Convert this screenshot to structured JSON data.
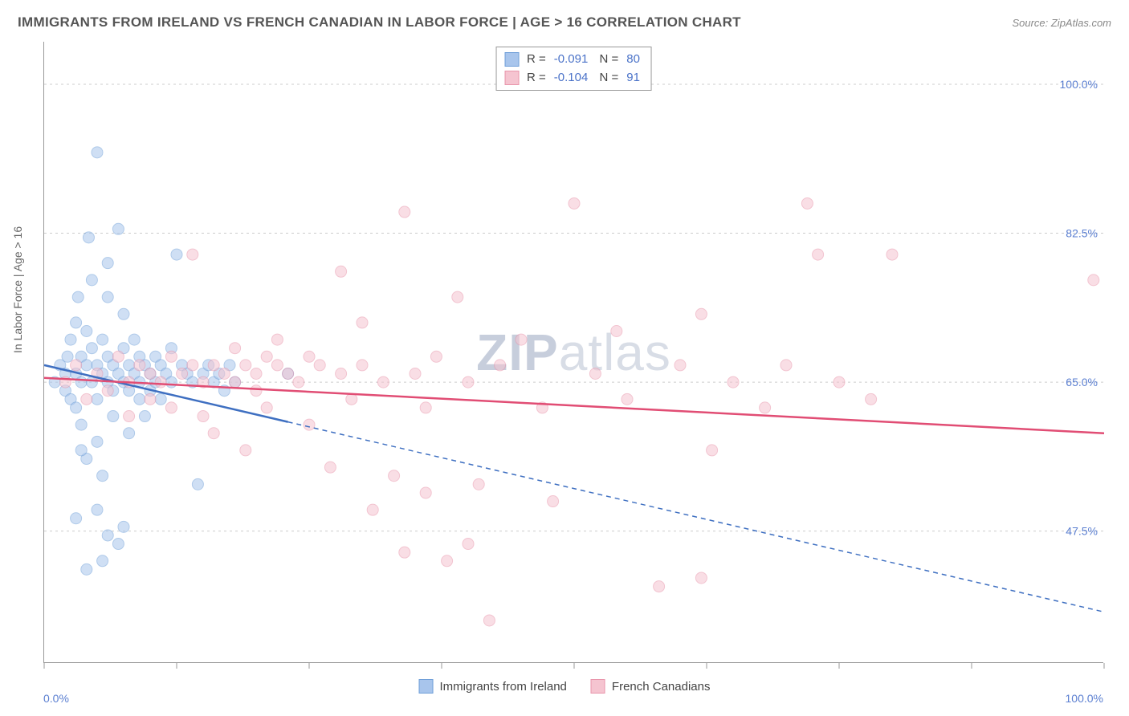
{
  "title": "IMMIGRANTS FROM IRELAND VS FRENCH CANADIAN IN LABOR FORCE | AGE > 16 CORRELATION CHART",
  "source_label": "Source: ZipAtlas.com",
  "y_axis_title": "In Labor Force | Age > 16",
  "watermark": {
    "bold": "ZIP",
    "light": "atlas"
  },
  "chart": {
    "type": "scatter",
    "xlim": [
      0,
      100
    ],
    "ylim": [
      32,
      105
    ],
    "x_ticks": [
      0,
      12.5,
      25,
      37.5,
      50,
      62.5,
      75,
      87.5,
      100
    ],
    "x_tick_labels": {
      "0": "0.0%",
      "100": "100.0%"
    },
    "y_gridlines": [
      47.5,
      65.0,
      82.5,
      100.0
    ],
    "y_tick_labels": [
      "47.5%",
      "65.0%",
      "82.5%",
      "100.0%"
    ],
    "background_color": "#ffffff",
    "grid_color": "#cccccc",
    "axis_color": "#999999",
    "tick_label_color": "#5b7fd1",
    "marker_radius": 7,
    "marker_opacity": 0.55,
    "line_width": 2.5
  },
  "series": [
    {
      "id": "ireland",
      "label": "Immigrants from Ireland",
      "color_fill": "#a8c5ec",
      "color_stroke": "#6f9fd8",
      "line_color": "#3e6fc1",
      "line_dash": "solid_then_dash",
      "R": "-0.091",
      "N": "80",
      "trend": {
        "x1": 0,
        "y1": 67,
        "x2": 100,
        "y2": 38
      },
      "solid_extent_x": 23,
      "points": [
        [
          1,
          65
        ],
        [
          1.5,
          67
        ],
        [
          2,
          64
        ],
        [
          2,
          66
        ],
        [
          2.2,
          68
        ],
        [
          2.5,
          63
        ],
        [
          2.5,
          70
        ],
        [
          3,
          66
        ],
        [
          3,
          62
        ],
        [
          3,
          72
        ],
        [
          3.2,
          75
        ],
        [
          3.5,
          65
        ],
        [
          3.5,
          68
        ],
        [
          3.5,
          60
        ],
        [
          4,
          67
        ],
        [
          4,
          71
        ],
        [
          4,
          56
        ],
        [
          4.2,
          82
        ],
        [
          4.5,
          65
        ],
        [
          4.5,
          69
        ],
        [
          5,
          63
        ],
        [
          5,
          67
        ],
        [
          5,
          58
        ],
        [
          5,
          92
        ],
        [
          5.5,
          66
        ],
        [
          5.5,
          70
        ],
        [
          5.5,
          44
        ],
        [
          6,
          65
        ],
        [
          6,
          68
        ],
        [
          6,
          79
        ],
        [
          6.5,
          64
        ],
        [
          6.5,
          67
        ],
        [
          6.5,
          61
        ],
        [
          7,
          66
        ],
        [
          7,
          83
        ],
        [
          7,
          46
        ],
        [
          7.5,
          65
        ],
        [
          7.5,
          69
        ],
        [
          7.5,
          73
        ],
        [
          8,
          67
        ],
        [
          8,
          64
        ],
        [
          8,
          59
        ],
        [
          8.5,
          66
        ],
        [
          8.5,
          70
        ],
        [
          9,
          65
        ],
        [
          9,
          63
        ],
        [
          9,
          68
        ],
        [
          9.5,
          67
        ],
        [
          9.5,
          61
        ],
        [
          10,
          66
        ],
        [
          10,
          64
        ],
        [
          10.5,
          65
        ],
        [
          10.5,
          68
        ],
        [
          11,
          67
        ],
        [
          11,
          63
        ],
        [
          11.5,
          66
        ],
        [
          12,
          65
        ],
        [
          12,
          69
        ],
        [
          12.5,
          80
        ],
        [
          13,
          67
        ],
        [
          13.5,
          66
        ],
        [
          14,
          65
        ],
        [
          14.5,
          53
        ],
        [
          15,
          66
        ],
        [
          15.5,
          67
        ],
        [
          16,
          65
        ],
        [
          16.5,
          66
        ],
        [
          17,
          64
        ],
        [
          17.5,
          67
        ],
        [
          18,
          65
        ],
        [
          4,
          43
        ],
        [
          5,
          50
        ],
        [
          6,
          47
        ],
        [
          5.5,
          54
        ],
        [
          3,
          49
        ],
        [
          3.5,
          57
        ],
        [
          4.5,
          77
        ],
        [
          6,
          75
        ],
        [
          7.5,
          48
        ],
        [
          23,
          66
        ]
      ]
    },
    {
      "id": "french",
      "label": "French Canadians",
      "color_fill": "#f5c4d0",
      "color_stroke": "#e995ab",
      "line_color": "#e14d74",
      "line_dash": "solid",
      "R": "-0.104",
      "N": "91",
      "trend": {
        "x1": 0,
        "y1": 65.5,
        "x2": 100,
        "y2": 59
      },
      "points": [
        [
          2,
          65
        ],
        [
          3,
          67
        ],
        [
          4,
          63
        ],
        [
          5,
          66
        ],
        [
          6,
          64
        ],
        [
          7,
          68
        ],
        [
          8,
          65
        ],
        [
          8,
          61
        ],
        [
          9,
          67
        ],
        [
          10,
          66
        ],
        [
          10,
          63
        ],
        [
          11,
          65
        ],
        [
          12,
          68
        ],
        [
          12,
          62
        ],
        [
          13,
          66
        ],
        [
          14,
          67
        ],
        [
          14,
          80
        ],
        [
          15,
          65
        ],
        [
          15,
          61
        ],
        [
          16,
          67
        ],
        [
          16,
          59
        ],
        [
          17,
          66
        ],
        [
          18,
          65
        ],
        [
          18,
          69
        ],
        [
          19,
          67
        ],
        [
          19,
          57
        ],
        [
          20,
          66
        ],
        [
          20,
          64
        ],
        [
          21,
          68
        ],
        [
          21,
          62
        ],
        [
          22,
          67
        ],
        [
          22,
          70
        ],
        [
          23,
          66
        ],
        [
          24,
          65
        ],
        [
          25,
          68
        ],
        [
          25,
          60
        ],
        [
          26,
          67
        ],
        [
          27,
          55
        ],
        [
          28,
          66
        ],
        [
          28,
          78
        ],
        [
          29,
          63
        ],
        [
          30,
          67
        ],
        [
          30,
          72
        ],
        [
          31,
          50
        ],
        [
          32,
          65
        ],
        [
          33,
          54
        ],
        [
          34,
          45
        ],
        [
          34,
          85
        ],
        [
          35,
          66
        ],
        [
          36,
          52
        ],
        [
          36,
          62
        ],
        [
          37,
          68
        ],
        [
          38,
          44
        ],
        [
          39,
          75
        ],
        [
          40,
          46
        ],
        [
          40,
          65
        ],
        [
          41,
          53
        ],
        [
          42,
          37
        ],
        [
          43,
          67
        ],
        [
          45,
          70
        ],
        [
          47,
          62
        ],
        [
          48,
          51
        ],
        [
          50,
          86
        ],
        [
          52,
          66
        ],
        [
          54,
          71
        ],
        [
          55,
          63
        ],
        [
          58,
          41
        ],
        [
          60,
          67
        ],
        [
          62,
          73
        ],
        [
          62,
          42
        ],
        [
          63,
          57
        ],
        [
          65,
          65
        ],
        [
          68,
          62
        ],
        [
          70,
          67
        ],
        [
          72,
          86
        ],
        [
          73,
          80
        ],
        [
          75,
          65
        ],
        [
          78,
          63
        ],
        [
          80,
          80
        ],
        [
          99,
          77
        ]
      ]
    }
  ],
  "bottom_legend": [
    {
      "label": "Immigrants from Ireland",
      "fill": "#a8c5ec",
      "stroke": "#6f9fd8"
    },
    {
      "label": "French Canadians",
      "fill": "#f5c4d0",
      "stroke": "#e995ab"
    }
  ]
}
